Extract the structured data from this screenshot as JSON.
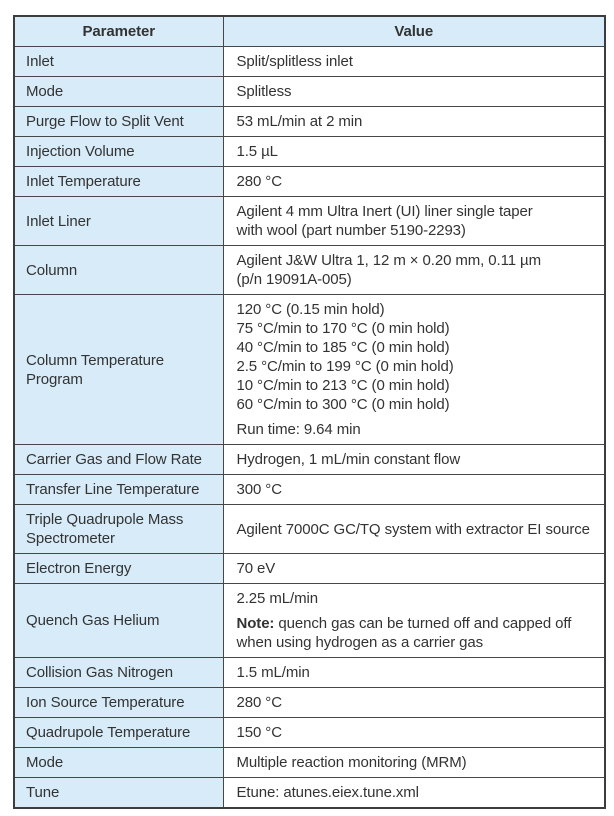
{
  "table": {
    "colors": {
      "header_bg": "#d7ebf8",
      "parameter_column_bg": "#d7ebf8",
      "value_column_bg": "#ffffff",
      "border": "#474747",
      "text": "#333333"
    },
    "header": {
      "parameter": "Parameter",
      "value": "Value"
    },
    "rows": [
      {
        "parameter": "Inlet",
        "value": [
          {
            "lines": [
              "Split/splitless inlet"
            ]
          }
        ]
      },
      {
        "parameter": "Mode",
        "value": [
          {
            "lines": [
              "Splitless"
            ]
          }
        ]
      },
      {
        "parameter": "Purge Flow to Split Vent",
        "value": [
          {
            "lines": [
              "53 mL/min at 2 min"
            ]
          }
        ]
      },
      {
        "parameter": "Injection Volume",
        "value": [
          {
            "lines": [
              "1.5 µL"
            ]
          }
        ]
      },
      {
        "parameter": "Inlet Temperature",
        "value": [
          {
            "lines": [
              "280 °C"
            ]
          }
        ]
      },
      {
        "parameter": "Inlet Liner",
        "value": [
          {
            "lines": [
              "Agilent 4 mm Ultra Inert (UI) liner single taper",
              "with wool (part number 5190-2293)"
            ]
          }
        ]
      },
      {
        "parameter": "Column",
        "value": [
          {
            "lines": [
              "Agilent J&W Ultra 1, 12 m × 0.20 mm, 0.11 µm",
              "(p/n 19091A-005)"
            ]
          }
        ]
      },
      {
        "parameter": "Column Temperature Program",
        "value": [
          {
            "lines": [
              "120 °C (0.15 min hold)",
              "75 °C/min to 170 °C (0 min hold)",
              "40 °C/min to 185 °C (0 min hold)",
              "2.5 °C/min to 199 °C (0 min hold)",
              "10 °C/min to 213 °C (0 min hold)",
              "60 °C/min to 300 °C (0 min hold)"
            ]
          },
          {
            "lines": [
              "Run time: 9.64 min"
            ]
          }
        ]
      },
      {
        "parameter": "Carrier Gas and Flow Rate",
        "value": [
          {
            "lines": [
              "Hydrogen, 1 mL/min constant flow"
            ]
          }
        ]
      },
      {
        "parameter": "Transfer Line Temperature",
        "value": [
          {
            "lines": [
              "300 °C"
            ]
          }
        ]
      },
      {
        "parameter": "Triple Quadrupole Mass Spectrometer",
        "value": [
          {
            "lines": [
              "Agilent 7000C GC/TQ system with extractor EI source"
            ]
          }
        ]
      },
      {
        "parameter": "Electron Energy",
        "value": [
          {
            "lines": [
              "70 eV"
            ]
          }
        ]
      },
      {
        "parameter": "Quench Gas Helium",
        "value": [
          {
            "lines": [
              "2.25 mL/min"
            ]
          },
          {
            "lines": [
              {
                "bold_prefix": "Note:",
                "text": " quench gas can be turned off and capped off when using hydrogen as a carrier gas"
              }
            ]
          }
        ]
      },
      {
        "parameter": "Collision Gas Nitrogen",
        "value": [
          {
            "lines": [
              "1.5 mL/min"
            ]
          }
        ]
      },
      {
        "parameter": "Ion Source Temperature",
        "value": [
          {
            "lines": [
              "280 °C"
            ]
          }
        ]
      },
      {
        "parameter": "Quadrupole Temperature",
        "value": [
          {
            "lines": [
              "150 °C"
            ]
          }
        ]
      },
      {
        "parameter": "Mode",
        "value": [
          {
            "lines": [
              "Multiple reaction monitoring (MRM)"
            ]
          }
        ]
      },
      {
        "parameter": "Tune",
        "value": [
          {
            "lines": [
              "Etune: atunes.eiex.tune.xml"
            ]
          }
        ]
      }
    ]
  }
}
